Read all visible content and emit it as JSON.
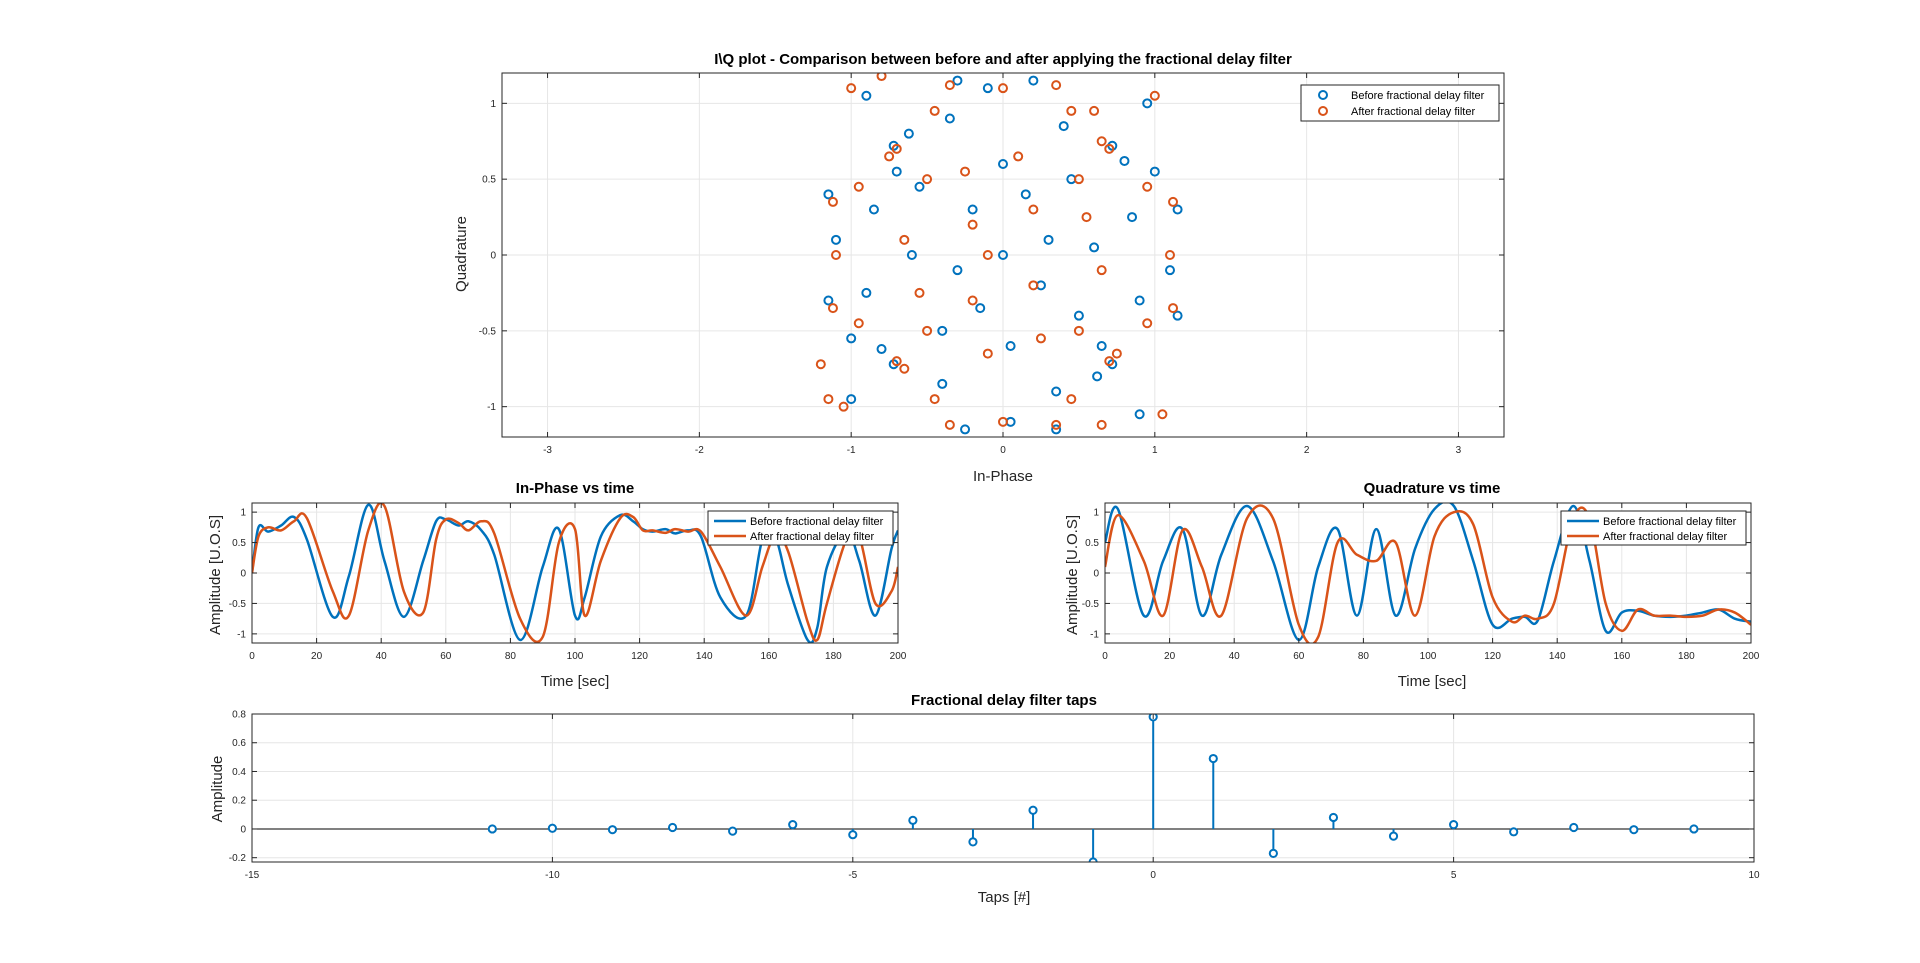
{
  "figure": {
    "background": "#ffffff"
  },
  "colors": {
    "before": "#0072BD",
    "after": "#D95319",
    "grid": "#e6e6e6",
    "axes": "#262626"
  },
  "chart_data": [
    {
      "id": "iq",
      "type": "scatter",
      "title": "I\\Q plot - Comparison between before and after applying the fractional delay filter",
      "xlabel": "In-Phase",
      "ylabel": "Quadrature",
      "xlim": [
        -3.3,
        3.3
      ],
      "ylim": [
        -1.2,
        1.2
      ],
      "xticks": [
        -3,
        -2,
        -1,
        0,
        1,
        2,
        3
      ],
      "xtick_labels": [
        "-3",
        "-2",
        "-1",
        "0",
        "1",
        "2",
        "3"
      ],
      "yticks": [
        -1,
        -0.5,
        0,
        0.5,
        1
      ],
      "ytick_labels": [
        "-1",
        "-0.5",
        "0",
        "0.5",
        "1"
      ],
      "grid": true,
      "legend_position": "top-right",
      "series": [
        {
          "name": "Before fractional delay filter",
          "color": "#0072BD",
          "marker": "o",
          "points": [
            [
              -0.72,
              0.72
            ],
            [
              0.72,
              0.72
            ],
            [
              -0.72,
              -0.72
            ],
            [
              0.72,
              -0.72
            ],
            [
              -0.62,
              0.8
            ],
            [
              0.8,
              0.62
            ],
            [
              -0.8,
              -0.62
            ],
            [
              0.62,
              -0.8
            ],
            [
              -1.15,
              0.4
            ],
            [
              -1.15,
              -0.3
            ],
            [
              -1.1,
              0.1
            ],
            [
              1.15,
              0.3
            ],
            [
              1.15,
              -0.4
            ],
            [
              1.1,
              -0.1
            ],
            [
              -0.3,
              1.15
            ],
            [
              0.2,
              1.15
            ],
            [
              -0.1,
              1.1
            ],
            [
              0.35,
              -1.15
            ],
            [
              -0.25,
              -1.15
            ],
            [
              0.05,
              -1.1
            ],
            [
              -0.55,
              0.45
            ],
            [
              0.5,
              -0.4
            ],
            [
              -0.4,
              -0.5
            ],
            [
              0.45,
              0.5
            ],
            [
              -0.2,
              0.3
            ],
            [
              0.25,
              -0.2
            ],
            [
              0.0,
              0.0
            ],
            [
              -0.9,
              1.05
            ],
            [
              0.95,
              1.0
            ],
            [
              -1.0,
              -0.95
            ],
            [
              0.9,
              -1.05
            ],
            [
              -0.35,
              0.9
            ],
            [
              0.4,
              0.85
            ],
            [
              -0.4,
              -0.85
            ],
            [
              0.35,
              -0.9
            ],
            [
              -0.85,
              0.3
            ],
            [
              0.9,
              -0.3
            ],
            [
              -0.9,
              -0.25
            ],
            [
              0.85,
              0.25
            ],
            [
              -0.6,
              0.0
            ],
            [
              0.6,
              0.05
            ],
            [
              0.0,
              0.6
            ],
            [
              0.05,
              -0.6
            ],
            [
              -0.7,
              0.55
            ],
            [
              0.65,
              -0.6
            ],
            [
              1.0,
              0.55
            ],
            [
              -1.0,
              -0.55
            ],
            [
              -0.15,
              -0.35
            ],
            [
              0.15,
              0.4
            ],
            [
              0.3,
              0.1
            ],
            [
              -0.3,
              -0.1
            ]
          ]
        },
        {
          "name": "After fractional delay filter",
          "color": "#D95319",
          "marker": "o",
          "points": [
            [
              -0.7,
              0.7
            ],
            [
              0.7,
              0.7
            ],
            [
              -0.7,
              -0.7
            ],
            [
              0.7,
              -0.7
            ],
            [
              -0.75,
              0.65
            ],
            [
              0.65,
              0.75
            ],
            [
              -0.65,
              -0.75
            ],
            [
              0.75,
              -0.65
            ],
            [
              -1.12,
              0.35
            ],
            [
              -1.12,
              -0.35
            ],
            [
              -1.1,
              0.0
            ],
            [
              1.12,
              0.35
            ],
            [
              1.12,
              -0.35
            ],
            [
              1.1,
              0.0
            ],
            [
              -0.35,
              1.12
            ],
            [
              0.35,
              1.12
            ],
            [
              0.0,
              1.1
            ],
            [
              -0.35,
              -1.12
            ],
            [
              0.35,
              -1.12
            ],
            [
              0.0,
              -1.1
            ],
            [
              -0.5,
              0.5
            ],
            [
              0.5,
              0.5
            ],
            [
              -0.5,
              -0.5
            ],
            [
              0.5,
              -0.5
            ],
            [
              -0.2,
              0.2
            ],
            [
              0.2,
              -0.2
            ],
            [
              -0.1,
              0.0
            ],
            [
              -1.0,
              1.1
            ],
            [
              1.0,
              1.05
            ],
            [
              -1.05,
              -1.0
            ],
            [
              1.05,
              -1.05
            ],
            [
              -0.45,
              0.95
            ],
            [
              0.45,
              0.95
            ],
            [
              -0.45,
              -0.95
            ],
            [
              0.45,
              -0.95
            ],
            [
              -0.95,
              0.45
            ],
            [
              0.95,
              0.45
            ],
            [
              -0.95,
              -0.45
            ],
            [
              0.95,
              -0.45
            ],
            [
              -0.65,
              0.1
            ],
            [
              0.65,
              -0.1
            ],
            [
              0.1,
              0.65
            ],
            [
              -0.1,
              -0.65
            ],
            [
              -0.25,
              0.55
            ],
            [
              0.25,
              -0.55
            ],
            [
              0.55,
              0.25
            ],
            [
              -0.55,
              -0.25
            ],
            [
              -0.2,
              -0.3
            ],
            [
              0.2,
              0.3
            ],
            [
              -1.2,
              -0.72
            ],
            [
              -1.15,
              -0.95
            ],
            [
              0.65,
              -1.12
            ],
            [
              0.6,
              0.95
            ],
            [
              -0.8,
              1.18
            ]
          ]
        }
      ]
    },
    {
      "id": "inphase",
      "type": "line",
      "title": "In-Phase vs time",
      "xlabel": "Time [sec]",
      "ylabel": "Amplitude [U.O.S]",
      "xlim": [
        0,
        200
      ],
      "ylim": [
        -1.15,
        1.15
      ],
      "xticks": [
        0,
        20,
        40,
        60,
        80,
        100,
        120,
        140,
        160,
        180,
        200
      ],
      "xtick_labels": [
        "0",
        "20",
        "40",
        "60",
        "80",
        "100",
        "120",
        "140",
        "160",
        "180",
        "200"
      ],
      "yticks": [
        -1,
        -0.5,
        0,
        0.5,
        1
      ],
      "ytick_labels": [
        "-1",
        "-0.5",
        "0",
        "0.5",
        "1"
      ],
      "grid": true,
      "legend_position": "top-right",
      "legend": [
        "Before fractional delay filter",
        "After fractional delay filter"
      ],
      "series": [
        {
          "name": "Before fractional delay filter",
          "color": "#0072BD",
          "x": [
            0,
            2,
            5,
            9,
            13,
            17,
            25,
            30,
            36,
            41,
            47,
            53,
            57,
            60,
            64,
            67,
            71,
            75,
            83,
            90,
            95,
            100,
            103,
            108,
            114,
            118,
            121,
            124,
            128,
            131,
            135,
            139,
            145,
            153,
            158,
            162,
            166,
            172,
            175,
            178,
            184,
            188,
            193,
            198,
            200
          ],
          "y": [
            0,
            0.75,
            0.68,
            0.78,
            0.92,
            0.55,
            -0.72,
            -0.05,
            1.12,
            0.2,
            -0.72,
            0.2,
            0.85,
            0.88,
            0.78,
            0.85,
            0.7,
            0.3,
            -1.1,
            0.1,
            0.72,
            -0.7,
            -0.4,
            0.6,
            0.95,
            0.85,
            0.72,
            0.68,
            0.72,
            0.65,
            0.7,
            0.6,
            -0.4,
            -0.7,
            0.55,
            0.6,
            -0.2,
            -1.1,
            -0.9,
            0.1,
            0.68,
            0.2,
            -0.7,
            0.4,
            0.7
          ]
        },
        {
          "name": "After fractional delay filter",
          "color": "#D95319",
          "x": [
            0,
            2,
            5,
            9,
            13,
            17,
            25,
            30,
            36,
            41,
            47,
            53,
            57,
            60,
            64,
            67,
            71,
            75,
            83,
            90,
            95,
            100,
            103,
            108,
            114,
            118,
            121,
            124,
            128,
            131,
            135,
            139,
            145,
            153,
            158,
            162,
            166,
            172,
            175,
            178,
            184,
            188,
            193,
            198,
            200
          ],
          "y": [
            0,
            0.6,
            0.75,
            0.7,
            0.85,
            0.9,
            -0.3,
            -0.7,
            0.7,
            1.1,
            -0.3,
            -0.65,
            0.55,
            0.88,
            0.82,
            0.7,
            0.85,
            0.65,
            -0.75,
            -1.05,
            0.5,
            0.72,
            -0.7,
            0.2,
            0.9,
            0.92,
            0.7,
            0.7,
            0.66,
            0.72,
            0.68,
            0.68,
            0.1,
            -0.7,
            0.1,
            0.62,
            0.35,
            -0.8,
            -1.1,
            -0.5,
            0.55,
            0.6,
            -0.5,
            -0.3,
            0.1
          ]
        }
      ]
    },
    {
      "id": "quad",
      "type": "line",
      "title": "Quadrature vs time",
      "xlabel": "Time [sec]",
      "ylabel": "Amplitude [U.O.S]",
      "xlim": [
        0,
        200
      ],
      "ylim": [
        -1.15,
        1.15
      ],
      "xticks": [
        0,
        20,
        40,
        60,
        80,
        100,
        120,
        140,
        160,
        180,
        200
      ],
      "xtick_labels": [
        "0",
        "20",
        "40",
        "60",
        "80",
        "100",
        "120",
        "140",
        "160",
        "180",
        "200"
      ],
      "yticks": [
        -1,
        -0.5,
        0,
        0.5,
        1
      ],
      "ytick_labels": [
        "-1",
        "-0.5",
        "0",
        "0.5",
        "1"
      ],
      "grid": true,
      "legend_position": "top-right",
      "legend": [
        "Before fractional delay filter",
        "After fractional delay filter"
      ],
      "series": [
        {
          "name": "Before fractional delay filter",
          "color": "#0072BD",
          "x": [
            0,
            4,
            12,
            18,
            24,
            30,
            36,
            44,
            52,
            60,
            66,
            72,
            78,
            84,
            90,
            96,
            102,
            108,
            114,
            120,
            126,
            130,
            134,
            139,
            145,
            150,
            155,
            160,
            165,
            170,
            175,
            180,
            185,
            190,
            195,
            200
          ],
          "y": [
            0.5,
            1.05,
            -0.7,
            0.2,
            0.72,
            -0.7,
            0.3,
            1.1,
            0.2,
            -1.1,
            0.1,
            0.72,
            -0.7,
            0.72,
            -0.7,
            0.4,
            1.05,
            1.1,
            0.2,
            -0.85,
            -0.75,
            -0.72,
            -0.78,
            0.2,
            1.1,
            0.2,
            -0.95,
            -0.65,
            -0.62,
            -0.7,
            -0.72,
            -0.7,
            -0.65,
            -0.6,
            -0.75,
            -0.8
          ]
        },
        {
          "name": "After fractional delay filter",
          "color": "#D95319",
          "x": [
            0,
            4,
            12,
            18,
            24,
            30,
            36,
            44,
            52,
            60,
            66,
            72,
            78,
            84,
            90,
            96,
            102,
            108,
            114,
            120,
            126,
            130,
            134,
            139,
            145,
            150,
            155,
            160,
            165,
            170,
            175,
            180,
            185,
            190,
            195,
            200
          ],
          "y": [
            0.1,
            0.95,
            0.2,
            -0.7,
            0.7,
            0.1,
            -0.7,
            0.9,
            0.9,
            -0.85,
            -1.05,
            0.5,
            0.3,
            0.2,
            0.5,
            -0.7,
            0.6,
            1.0,
            0.8,
            -0.4,
            -0.8,
            -0.7,
            -0.75,
            -0.5,
            0.9,
            0.9,
            -0.5,
            -0.95,
            -0.6,
            -0.7,
            -0.7,
            -0.72,
            -0.7,
            -0.6,
            -0.65,
            -0.85
          ]
        }
      ]
    },
    {
      "id": "taps",
      "type": "stem",
      "title": "Fractional delay filter taps",
      "xlabel": "Taps [#]",
      "ylabel": "Amplitude",
      "xlim": [
        -15,
        10
      ],
      "ylim": [
        -0.23,
        0.8
      ],
      "xticks": [
        -15,
        -10,
        -5,
        0,
        5,
        10
      ],
      "xtick_labels": [
        "-15",
        "-10",
        "-5",
        "0",
        "5",
        "10"
      ],
      "yticks": [
        -0.2,
        0,
        0.2,
        0.4,
        0.6,
        0.8
      ],
      "ytick_labels": [
        "-0.2",
        "0",
        "0.2",
        "0.4",
        "0.6",
        "0.8"
      ],
      "grid": true,
      "series": [
        {
          "name": "",
          "color": "#0072BD",
          "x": [
            -11,
            -10,
            -9,
            -8,
            -7,
            -6,
            -5,
            -4,
            -3,
            -2,
            -1,
            0,
            1,
            2,
            3,
            4,
            5,
            6,
            7,
            8,
            9
          ],
          "y": [
            0.0,
            0.005,
            -0.005,
            0.01,
            -0.015,
            0.03,
            -0.04,
            0.06,
            -0.09,
            0.13,
            -0.23,
            0.78,
            0.49,
            -0.17,
            0.08,
            -0.05,
            0.03,
            -0.02,
            0.01,
            -0.005,
            0.0
          ]
        }
      ]
    }
  ]
}
